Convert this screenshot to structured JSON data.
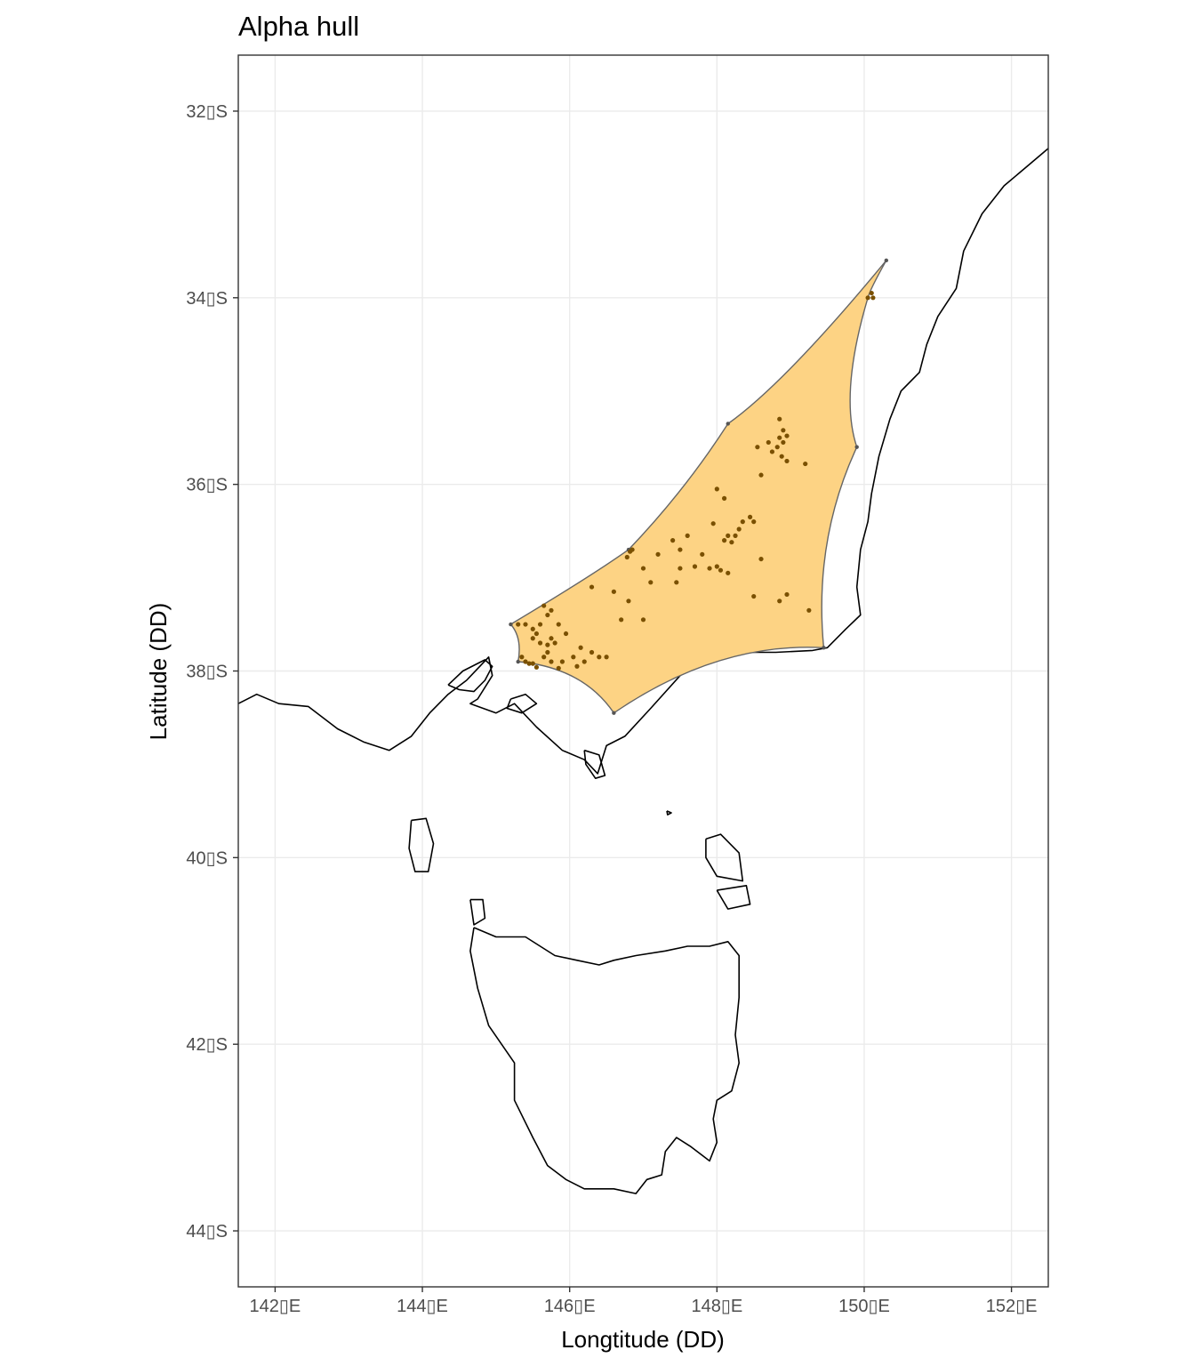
{
  "chart_data": {
    "type": "scatter",
    "title": "Alpha hull",
    "xlabel": "Longtitude (DD)",
    "ylabel": "Latitude (DD)",
    "xlim": [
      141.5,
      152.5
    ],
    "ylim": [
      -44.6,
      -31.4
    ],
    "grid": true,
    "x_ticks": [
      {
        "value": 142,
        "label": "142▯E"
      },
      {
        "value": 144,
        "label": "144▯E"
      },
      {
        "value": 146,
        "label": "146▯E"
      },
      {
        "value": 148,
        "label": "148▯E"
      },
      {
        "value": 150,
        "label": "150▯E"
      },
      {
        "value": 152,
        "label": "152▯E"
      }
    ],
    "y_ticks": [
      {
        "value": -32,
        "label": "32▯S"
      },
      {
        "value": -34,
        "label": "34▯S"
      },
      {
        "value": -36,
        "label": "36▯S"
      },
      {
        "value": -38,
        "label": "38▯S"
      },
      {
        "value": -40,
        "label": "40▯S"
      },
      {
        "value": -42,
        "label": "42▯S"
      },
      {
        "value": -44,
        "label": "44▯S"
      }
    ],
    "hull_color": "#fdd384",
    "hull_stroke": "#666666",
    "point_color": "#7a5000",
    "coast_color": "#000000",
    "hull_vertices": [
      [
        150.3,
        -33.6
      ],
      [
        150.05,
        -34.0
      ],
      [
        149.9,
        -35.6
      ],
      [
        149.45,
        -37.75
      ],
      [
        146.6,
        -38.45
      ],
      [
        145.3,
        -37.9
      ],
      [
        145.2,
        -37.5
      ],
      [
        146.8,
        -36.7
      ],
      [
        148.15,
        -35.35
      ]
    ],
    "points": [
      [
        150.1,
        -33.95
      ],
      [
        150.05,
        -34.0
      ],
      [
        150.12,
        -34.0
      ],
      [
        148.85,
        -35.3
      ],
      [
        148.9,
        -35.42
      ],
      [
        148.95,
        -35.48
      ],
      [
        148.85,
        -35.5
      ],
      [
        148.9,
        -35.55
      ],
      [
        148.82,
        -35.6
      ],
      [
        148.75,
        -35.65
      ],
      [
        148.88,
        -35.7
      ],
      [
        148.95,
        -35.75
      ],
      [
        148.55,
        -35.6
      ],
      [
        148.7,
        -35.55
      ],
      [
        149.2,
        -35.78
      ],
      [
        148.6,
        -35.9
      ],
      [
        148.0,
        -36.05
      ],
      [
        148.1,
        -36.15
      ],
      [
        148.45,
        -36.35
      ],
      [
        148.5,
        -36.4
      ],
      [
        148.35,
        -36.4
      ],
      [
        148.3,
        -36.48
      ],
      [
        148.25,
        -36.55
      ],
      [
        148.15,
        -36.55
      ],
      [
        148.1,
        -36.6
      ],
      [
        148.2,
        -36.62
      ],
      [
        147.95,
        -36.42
      ],
      [
        147.6,
        -36.55
      ],
      [
        147.5,
        -36.7
      ],
      [
        147.4,
        -36.6
      ],
      [
        147.2,
        -36.75
      ],
      [
        147.0,
        -36.9
      ],
      [
        146.82,
        -36.72
      ],
      [
        146.78,
        -36.78
      ],
      [
        146.85,
        -36.7
      ],
      [
        147.8,
        -36.75
      ],
      [
        147.9,
        -36.9
      ],
      [
        148.0,
        -36.88
      ],
      [
        148.05,
        -36.92
      ],
      [
        148.15,
        -36.95
      ],
      [
        147.7,
        -36.88
      ],
      [
        147.5,
        -36.9
      ],
      [
        147.45,
        -37.05
      ],
      [
        148.6,
        -36.8
      ],
      [
        146.3,
        -37.1
      ],
      [
        146.6,
        -37.15
      ],
      [
        146.8,
        -37.25
      ],
      [
        148.5,
        -37.2
      ],
      [
        147.1,
        -37.05
      ],
      [
        148.95,
        -37.18
      ],
      [
        148.85,
        -37.25
      ],
      [
        149.25,
        -37.35
      ],
      [
        146.7,
        -37.45
      ],
      [
        147.0,
        -37.45
      ],
      [
        145.3,
        -37.5
      ],
      [
        145.4,
        -37.5
      ],
      [
        145.5,
        -37.55
      ],
      [
        145.55,
        -37.6
      ],
      [
        145.6,
        -37.5
      ],
      [
        145.7,
        -37.4
      ],
      [
        145.75,
        -37.35
      ],
      [
        145.65,
        -37.3
      ],
      [
        145.5,
        -37.65
      ],
      [
        145.6,
        -37.7
      ],
      [
        145.7,
        -37.72
      ],
      [
        145.75,
        -37.65
      ],
      [
        145.8,
        -37.7
      ],
      [
        145.7,
        -37.8
      ],
      [
        145.65,
        -37.85
      ],
      [
        145.75,
        -37.9
      ],
      [
        145.9,
        -37.9
      ],
      [
        146.05,
        -37.85
      ],
      [
        146.15,
        -37.75
      ],
      [
        146.3,
        -37.8
      ],
      [
        146.2,
        -37.9
      ],
      [
        146.1,
        -37.95
      ],
      [
        146.4,
        -37.85
      ],
      [
        145.35,
        -37.85
      ],
      [
        145.4,
        -37.9
      ],
      [
        145.45,
        -37.92
      ],
      [
        145.5,
        -37.92
      ],
      [
        145.55,
        -37.96
      ],
      [
        145.85,
        -37.97
      ],
      [
        146.5,
        -37.85
      ],
      [
        145.95,
        -37.6
      ],
      [
        145.85,
        -37.5
      ]
    ]
  }
}
